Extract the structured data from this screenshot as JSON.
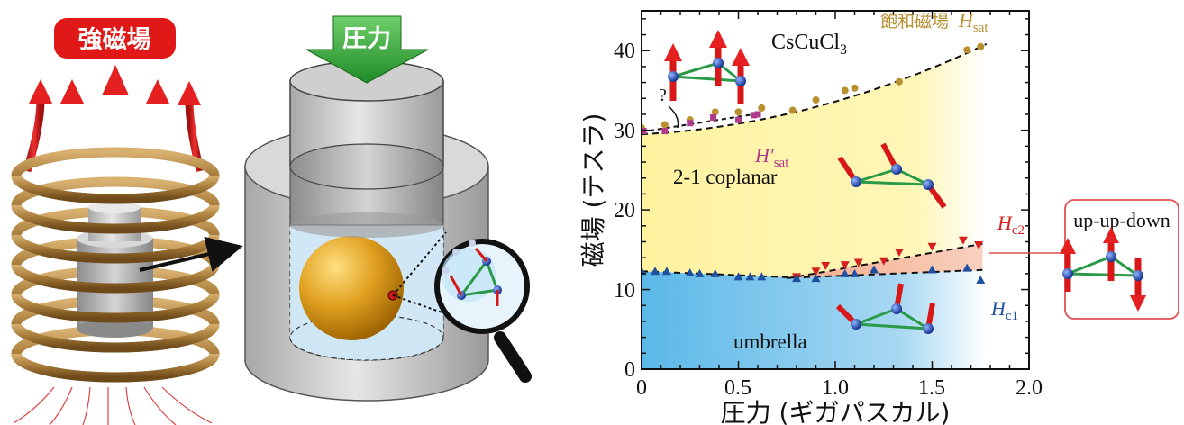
{
  "left_panel": {
    "field_label": "強磁場",
    "pressure_label": "圧力"
  },
  "chart_data": {
    "type": "scatter",
    "material": "CsCuCl",
    "material_subscript": "3",
    "xlabel": "圧力 (ギガパスカル)",
    "ylabel": "磁場 (テスラ)",
    "xlim": [
      0,
      2.0
    ],
    "ylim": [
      0,
      45
    ],
    "xticks": [
      "0",
      "0.5",
      "1.0",
      "1.5",
      "2.0"
    ],
    "yticks": [
      "0",
      "10",
      "20",
      "30",
      "40"
    ],
    "phases": {
      "upper": "飽和磁場",
      "coplanar": "2-1 coplanar",
      "umbrella": "umbrella",
      "question": "?"
    },
    "field_labels": {
      "hsat": "H",
      "hsat_sub": "sat",
      "hsat_prime": "H′",
      "hsat_prime_sub": "sat",
      "hc2": "H",
      "hc2_sub": "c2",
      "hc1": "H",
      "hc1_sub": "c1"
    },
    "inset_label": "up-up-down",
    "colors": {
      "hsat": "#b8902e",
      "hsat_prime": "#b03a8c",
      "hc2": "#d62020",
      "hc1": "#2050a0"
    },
    "series": [
      {
        "name": "H_sat",
        "points": [
          [
            0,
            30.3
          ],
          [
            0.12,
            30.7
          ],
          [
            0.25,
            31.3
          ],
          [
            0.38,
            32.3
          ],
          [
            0.5,
            32.3
          ],
          [
            0.62,
            32.8
          ],
          [
            0.78,
            32.5
          ],
          [
            0.9,
            33.8
          ],
          [
            1.05,
            35.0
          ],
          [
            1.1,
            35.3
          ],
          [
            1.33,
            36.1
          ],
          [
            1.68,
            40.1
          ],
          [
            1.75,
            40.5
          ]
        ]
      },
      {
        "name": "H'_sat",
        "points": [
          [
            0.01,
            29.9
          ],
          [
            0.12,
            29.9
          ],
          [
            0.25,
            30.9
          ],
          [
            0.37,
            31.6
          ],
          [
            0.5,
            31.3
          ],
          [
            0.58,
            31.9
          ],
          [
            0.6,
            32.0
          ]
        ]
      },
      {
        "name": "H_c2",
        "points": [
          [
            0.8,
            11.6
          ],
          [
            0.9,
            12.3
          ],
          [
            0.95,
            13.0
          ],
          [
            1.05,
            13.1
          ],
          [
            1.12,
            13.4
          ],
          [
            1.25,
            13.6
          ],
          [
            1.33,
            14.7
          ],
          [
            1.5,
            15.4
          ],
          [
            1.66,
            16.2
          ],
          [
            1.74,
            15.6
          ]
        ]
      },
      {
        "name": "H_c1",
        "points": [
          [
            0,
            12.3
          ],
          [
            0.07,
            12.3
          ],
          [
            0.13,
            12.3
          ],
          [
            0.25,
            12.1
          ],
          [
            0.3,
            12.0
          ],
          [
            0.38,
            12.0
          ],
          [
            0.5,
            11.6
          ],
          [
            0.56,
            11.6
          ],
          [
            0.62,
            11.6
          ],
          [
            0.8,
            11.4
          ],
          [
            0.9,
            11.4
          ],
          [
            1.05,
            12.0
          ],
          [
            1.1,
            12.0
          ],
          [
            1.2,
            12.5
          ],
          [
            1.5,
            12.5
          ],
          [
            1.68,
            12.7
          ],
          [
            1.75,
            11.2
          ]
        ]
      }
    ]
  }
}
